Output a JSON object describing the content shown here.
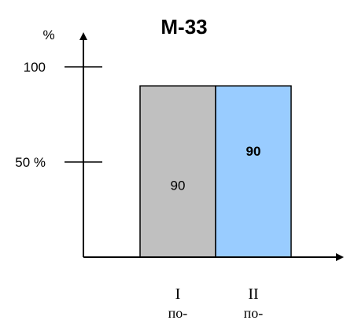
{
  "chart_data": {
    "type": "bar",
    "title": "М-33",
    "ylabel": "%",
    "ylim": [
      0,
      140
    ],
    "y_ticks": [
      {
        "value": 50,
        "label": "50 %"
      },
      {
        "value": 100,
        "label": "100"
      }
    ],
    "categories": [
      "I",
      "II"
    ],
    "category_sublabels": [
      "по-",
      "по-"
    ],
    "values": [
      90,
      90
    ],
    "value_labels": [
      "90",
      "90"
    ],
    "colors": [
      "#c0c0c0",
      "#99ccff"
    ],
    "grid": false,
    "legend": false
  }
}
